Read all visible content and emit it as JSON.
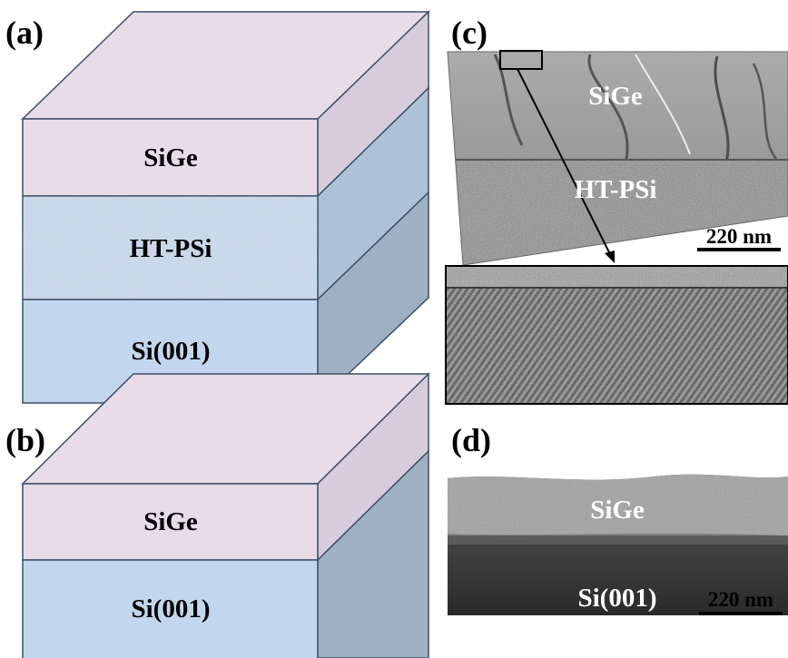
{
  "panels": {
    "a": {
      "label": "(a)",
      "layers": [
        "SiGe",
        "HT-PSi",
        "Si(001)"
      ]
    },
    "b": {
      "label": "(b)",
      "layers": [
        "SiGe",
        "Si(001)"
      ]
    },
    "c": {
      "label": "(c)",
      "labels": [
        "SiGe",
        "HT-PSi"
      ],
      "scale_bar": "220 nm"
    },
    "d": {
      "label": "(d)",
      "labels": [
        "SiGe",
        "Si(001)"
      ],
      "scale_bar": "220 nm"
    }
  },
  "colors": {
    "sige_front": "#e6dde9",
    "sige_top": "#e6dde9",
    "sige_side": "#d6ccdc",
    "psi_front": "#c6d9ea",
    "psi_side": "#adc2d6",
    "si_front": "#c2d6ee",
    "si_side": "#9eb0c2",
    "edge": "#3e4f66"
  }
}
